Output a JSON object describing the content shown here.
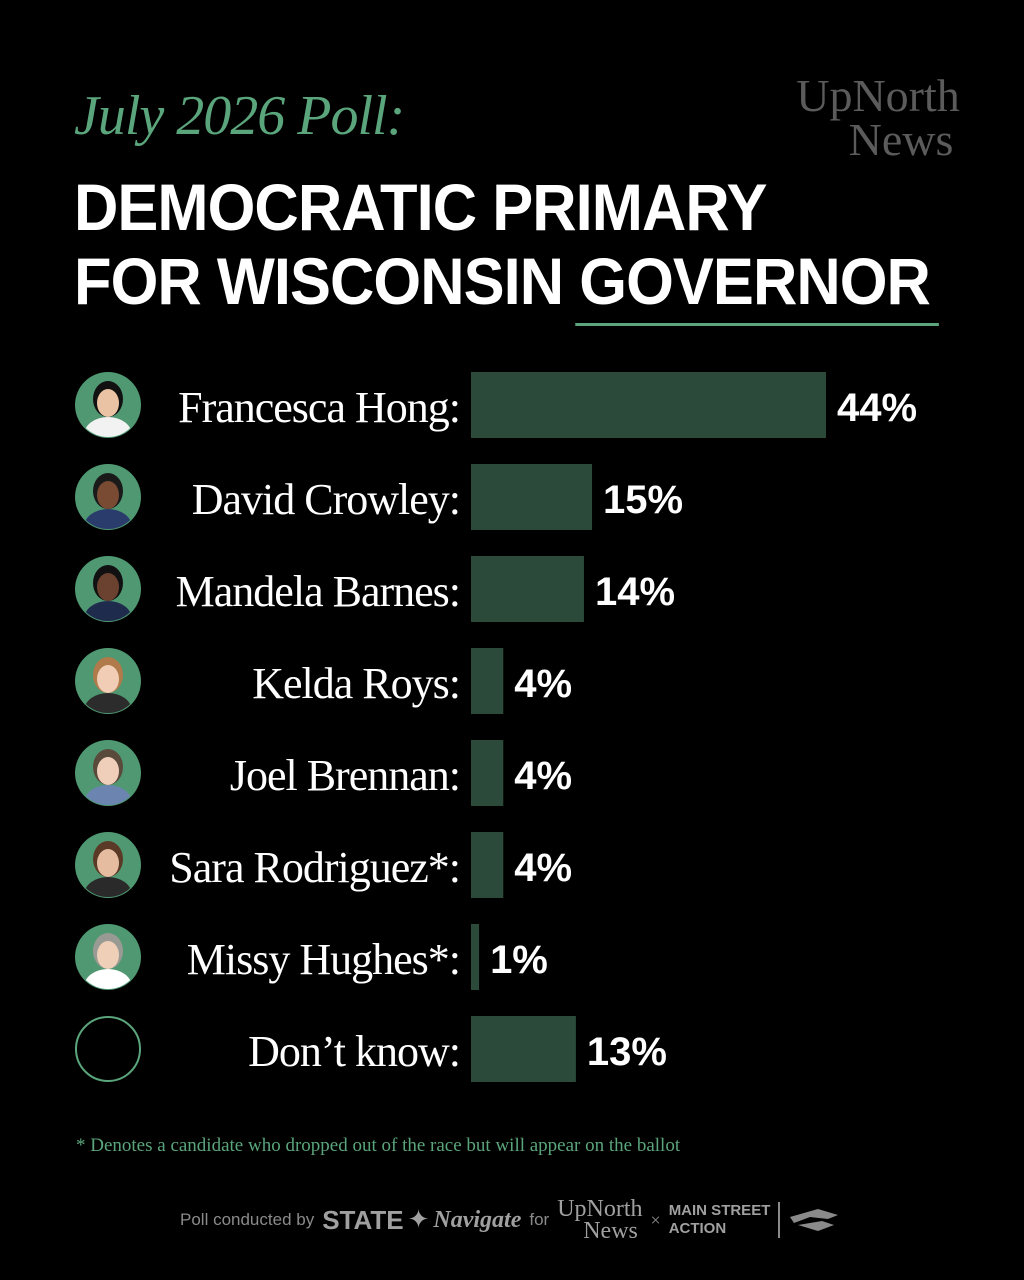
{
  "header": {
    "kicker": "July 2026 Poll:",
    "title_line1": "DEMOCRATIC PRIMARY",
    "title_line2a": "FOR WISCONSIN ",
    "title_line2b": "GOVERNOR"
  },
  "logo": {
    "line1": "UpNorth",
    "line2": "News"
  },
  "colors": {
    "bar": "#2c4a3a",
    "accent": "#5aa57c",
    "avatar": "#4f9872"
  },
  "chart_data": {
    "type": "bar",
    "orientation": "horizontal",
    "categories": [
      "Francesca Hong:",
      "David Crowley:",
      "Mandela Barnes:",
      "Kelda Roys:",
      "Joel Brennan:",
      "Sara Rodriguez*:",
      "Missy Hughes*:",
      "Don’t know:"
    ],
    "values": [
      44,
      15,
      14,
      4,
      4,
      4,
      1,
      13
    ],
    "value_labels": [
      "44%",
      "15%",
      "14%",
      "4%",
      "4%",
      "4%",
      "1%",
      "13%"
    ],
    "unit": "%",
    "xlim": [
      0,
      44
    ],
    "grid": false,
    "legend": "none"
  },
  "footnote": {
    "star": "*",
    "text": "Denotes a candidate who dropped out of the race but will appear on the ballot"
  },
  "credits": {
    "conducted": "Poll conducted by",
    "state": "STATE",
    "navigate": "Navigate",
    "for": "for",
    "un1": "UpNorth",
    "un2": "News",
    "times": "×",
    "msa1": "MAIN STREET",
    "msa2": "ACTION"
  }
}
